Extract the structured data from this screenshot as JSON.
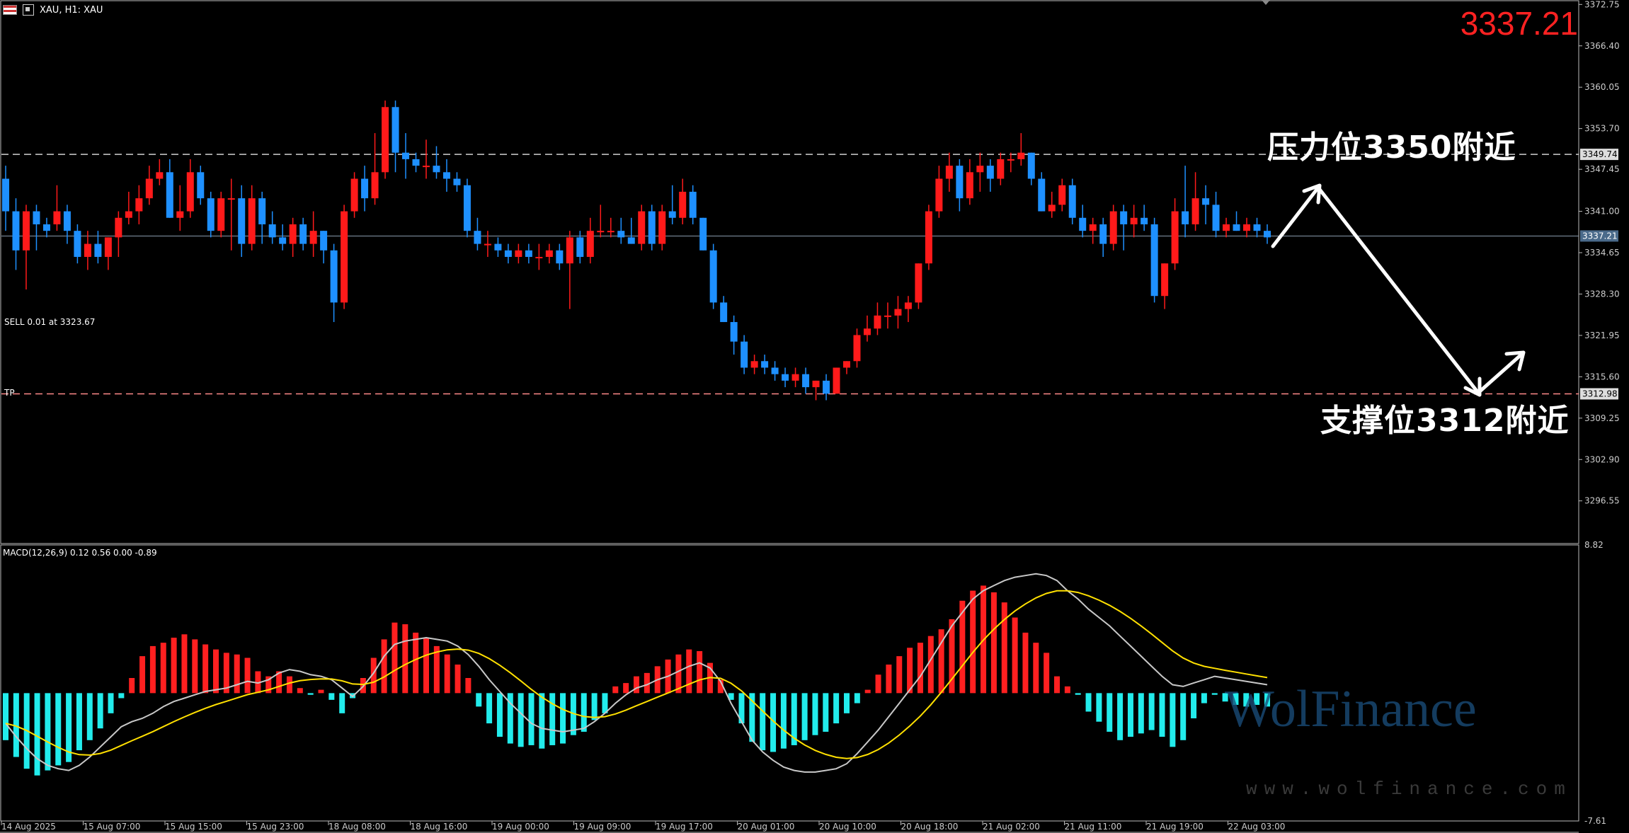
{
  "header": {
    "symbol_text": "XAU, H1:  XAU",
    "current_price": "3337.21",
    "trade_label": "SELL 0.01 at 3323.67",
    "tp_label": "TP",
    "macd_label": "MACD(12,26,9) 0.12 0.56 0.00 -0.89"
  },
  "annotations": {
    "resistance": "压力位3350附近",
    "support": "支撑位3312附近"
  },
  "watermark": {
    "brand": "WolFinance",
    "url": "www.wolfinance.com"
  },
  "colors": {
    "bull": "#ff1a1a",
    "bear": "#1e90ff",
    "macd_pos": "#ff2020",
    "macd_neg": "#22ecec",
    "macd_line": "#c8c8c8",
    "signal_line": "#ffe000",
    "grid": "#bbbbbb"
  },
  "chart_data": [
    {
      "type": "candlestick",
      "price_axis": [
        "3372.75",
        "3366.40",
        "3360.05",
        "3353.70",
        "3347.45",
        "3341.00",
        "3334.65",
        "3328.30",
        "3321.95",
        "3315.60",
        "3309.25",
        "3302.90",
        "3296.55"
      ],
      "ylim": [
        3290,
        3373
      ],
      "levels": {
        "resistance_line": "3349.74",
        "current_line": "3337.21",
        "tp_line": "3312.98"
      },
      "time_labels": [
        "14 Aug 2025",
        "15 Aug 07:00",
        "15 Aug 15:00",
        "15 Aug 23:00",
        "18 Aug 08:00",
        "18 Aug 16:00",
        "19 Aug 00:00",
        "19 Aug 09:00",
        "19 Aug 17:00",
        "20 Aug 01:00",
        "20 Aug 10:00",
        "20 Aug 18:00",
        "21 Aug 02:00",
        "21 Aug 11:00",
        "21 Aug 19:00",
        "22 Aug 03:00"
      ],
      "candles": [
        [
          3346,
          3348,
          3338,
          3341
        ],
        [
          3341,
          3343,
          3332,
          3335
        ],
        [
          3335,
          3342,
          3329,
          3341
        ],
        [
          3341,
          3342,
          3335,
          3339
        ],
        [
          3339,
          3340,
          3337,
          3338
        ],
        [
          3339,
          3345,
          3338,
          3341
        ],
        [
          3341,
          3342,
          3336,
          3338
        ],
        [
          3338,
          3339,
          3333,
          3334
        ],
        [
          3334,
          3338,
          3332,
          3336
        ],
        [
          3336,
          3338,
          3333,
          3334
        ],
        [
          3334,
          3337,
          3332,
          3337
        ],
        [
          3337,
          3341,
          3334,
          3340
        ],
        [
          3340,
          3344,
          3339,
          3341
        ],
        [
          3341,
          3345,
          3339,
          3343
        ],
        [
          3343,
          3348,
          3342,
          3346
        ],
        [
          3346,
          3349,
          3345,
          3347
        ],
        [
          3347,
          3349,
          3340,
          3340
        ],
        [
          3340,
          3345,
          3338,
          3341
        ],
        [
          3341,
          3349,
          3340,
          3347
        ],
        [
          3347,
          3348,
          3342,
          3343
        ],
        [
          3343,
          3344,
          3337,
          3338
        ],
        [
          3338,
          3344,
          3337,
          3343
        ],
        [
          3343,
          3346,
          3335,
          3343
        ],
        [
          3343,
          3345,
          3334,
          3336
        ],
        [
          3336,
          3345,
          3335,
          3343
        ],
        [
          3343,
          3344,
          3336,
          3339
        ],
        [
          3339,
          3341,
          3336,
          3337
        ],
        [
          3337,
          3339,
          3335,
          3336
        ],
        [
          3336,
          3340,
          3334,
          3339
        ],
        [
          3339,
          3340,
          3335,
          3336
        ],
        [
          3336,
          3341,
          3334,
          3338
        ],
        [
          3338,
          3338,
          3333,
          3335
        ],
        [
          3335,
          3336,
          3324,
          3327
        ],
        [
          3327,
          3342,
          3326,
          3341
        ],
        [
          3341,
          3347,
          3340,
          3346
        ],
        [
          3346,
          3348,
          3341,
          3343
        ],
        [
          3343,
          3353,
          3342,
          3347
        ],
        [
          3347,
          3358,
          3346,
          3357
        ],
        [
          3357,
          3358,
          3347,
          3350
        ],
        [
          3350,
          3353,
          3346,
          3349
        ],
        [
          3349,
          3350,
          3347,
          3348
        ],
        [
          3348,
          3352,
          3346,
          3348
        ],
        [
          3348,
          3351,
          3346,
          3347
        ],
        [
          3347,
          3349,
          3344,
          3346
        ],
        [
          3346,
          3347,
          3344,
          3345
        ],
        [
          3345,
          3346,
          3337,
          3338
        ],
        [
          3338,
          3340,
          3335,
          3336
        ],
        [
          3336,
          3338,
          3334,
          3336
        ],
        [
          3336,
          3337,
          3334,
          3335
        ],
        [
          3335,
          3336,
          3333,
          3334
        ],
        [
          3334,
          3336,
          3333,
          3335
        ],
        [
          3335,
          3336,
          3333,
          3334
        ],
        [
          3334,
          3336,
          3332,
          3334
        ],
        [
          3334,
          3336,
          3333,
          3335
        ],
        [
          3335,
          3336,
          3332,
          3333
        ],
        [
          3333,
          3338,
          3326,
          3337
        ],
        [
          3337,
          3338,
          3333,
          3334
        ],
        [
          3334,
          3340,
          3333,
          3338
        ],
        [
          3338,
          3342,
          3337,
          3338
        ],
        [
          3338,
          3340,
          3337,
          3338
        ],
        [
          3338,
          3340,
          3336,
          3337
        ],
        [
          3337,
          3340,
          3336,
          3336
        ],
        [
          3336,
          3342,
          3335,
          3341
        ],
        [
          3341,
          3342,
          3335,
          3336
        ],
        [
          3336,
          3342,
          3335,
          3341
        ],
        [
          3341,
          3345,
          3339,
          3340
        ],
        [
          3340,
          3346,
          3339,
          3344
        ],
        [
          3344,
          3345,
          3339,
          3340
        ],
        [
          3340,
          3340,
          3335,
          3335
        ],
        [
          3335,
          3336,
          3326,
          3327
        ],
        [
          3327,
          3328,
          3324,
          3324
        ],
        [
          3324,
          3325,
          3319,
          3321
        ],
        [
          3321,
          3322,
          3316,
          3317
        ],
        [
          3317,
          3319,
          3316,
          3318
        ],
        [
          3318,
          3319,
          3316,
          3317
        ],
        [
          3317,
          3318,
          3315,
          3316
        ],
        [
          3316,
          3317,
          3314,
          3315
        ],
        [
          3315,
          3317,
          3314,
          3316
        ],
        [
          3316,
          3317,
          3313,
          3314
        ],
        [
          3314,
          3315,
          3312,
          3315
        ],
        [
          3315,
          3316,
          3312,
          3313
        ],
        [
          3313,
          3317,
          3313,
          3317
        ],
        [
          3317,
          3318,
          3316,
          3318
        ],
        [
          3318,
          3323,
          3317,
          3322
        ],
        [
          3322,
          3325,
          3321,
          3323
        ],
        [
          3323,
          3327,
          3322,
          3325
        ],
        [
          3325,
          3327,
          3323,
          3325
        ],
        [
          3325,
          3328,
          3323,
          3326
        ],
        [
          3326,
          3328,
          3324,
          3327
        ],
        [
          3327,
          3333,
          3326,
          3333
        ],
        [
          3333,
          3342,
          3332,
          3341
        ],
        [
          3341,
          3348,
          3340,
          3346
        ],
        [
          3346,
          3350,
          3344,
          3348
        ],
        [
          3348,
          3349,
          3341,
          3343
        ],
        [
          3343,
          3349,
          3342,
          3347
        ],
        [
          3347,
          3350,
          3344,
          3348
        ],
        [
          3348,
          3349,
          3344,
          3346
        ],
        [
          3346,
          3350,
          3345,
          3349
        ],
        [
          3349,
          3350,
          3347,
          3349
        ],
        [
          3349,
          3353,
          3348,
          3350
        ],
        [
          3350,
          3350,
          3345,
          3346
        ],
        [
          3346,
          3347,
          3341,
          3341
        ],
        [
          3341,
          3344,
          3340,
          3342
        ],
        [
          3342,
          3346,
          3341,
          3345
        ],
        [
          3345,
          3346,
          3339,
          3340
        ],
        [
          3340,
          3342,
          3337,
          3338
        ],
        [
          3338,
          3340,
          3336,
          3339
        ],
        [
          3339,
          3340,
          3334,
          3336
        ],
        [
          3336,
          3342,
          3335,
          3341
        ],
        [
          3341,
          3342,
          3335,
          3339
        ],
        [
          3339,
          3342,
          3337,
          3340
        ],
        [
          3340,
          3342,
          3338,
          3339
        ],
        [
          3339,
          3340,
          3327,
          3328
        ],
        [
          3328,
          3333,
          3326,
          3333
        ],
        [
          3333,
          3343,
          3332,
          3341
        ],
        [
          3341,
          3348,
          3337,
          3339
        ],
        [
          3339,
          3347,
          3338,
          3343
        ],
        [
          3343,
          3345,
          3339,
          3342
        ],
        [
          3342,
          3344,
          3337,
          3338
        ],
        [
          3338,
          3340,
          3337,
          3339
        ],
        [
          3339,
          3341,
          3338,
          3338
        ],
        [
          3338,
          3340,
          3337,
          3339
        ],
        [
          3339,
          3340,
          3337,
          3338
        ],
        [
          3338,
          3339,
          3336,
          3337
        ]
      ]
    },
    {
      "type": "bar",
      "name": "MACD",
      "axis": [
        "8.82",
        "-7.61"
      ],
      "ylim": [
        -7.61,
        8.82
      ],
      "histogram": [
        -2.8,
        -3.8,
        -4.5,
        -4.9,
        -4.6,
        -4.3,
        -4.1,
        -3.4,
        -2.8,
        -2.1,
        -1.2,
        -0.3,
        0.9,
        2.2,
        2.8,
        3.0,
        3.3,
        3.5,
        3.2,
        2.9,
        2.6,
        2.4,
        2.3,
        2.1,
        1.3,
        1.0,
        1.3,
        1.0,
        0.3,
        -0.1,
        0.2,
        -0.4,
        -1.2,
        -0.3,
        0.9,
        2.1,
        3.2,
        4.2,
        4.1,
        3.6,
        3.3,
        2.8,
        2.3,
        1.7,
        0.9,
        -0.8,
        -1.8,
        -2.6,
        -3.0,
        -3.2,
        -3.1,
        -3.3,
        -3.1,
        -3.0,
        -2.5,
        -2.3,
        -1.6,
        -1.2,
        0.4,
        0.6,
        1.0,
        1.2,
        1.6,
        2.0,
        2.3,
        2.6,
        2.5,
        1.8,
        0.8,
        -0.4,
        -1.8,
        -2.9,
        -3.4,
        -3.5,
        -3.3,
        -3.1,
        -2.8,
        -2.5,
        -2.3,
        -1.8,
        -1.2,
        -0.6,
        0.2,
        1.1,
        1.7,
        2.2,
        2.7,
        3.0,
        3.4,
        3.8,
        4.4,
        5.5,
        6.1,
        6.4,
        6.0,
        5.4,
        4.5,
        3.6,
        3.0,
        2.4,
        1.0,
        0.4,
        -0.1,
        -1.1,
        -1.7,
        -2.3,
        -2.8,
        -2.6,
        -2.4,
        -2.2,
        -2.6,
        -3.2,
        -2.8,
        -1.5,
        -0.6,
        -0.1,
        -0.5,
        -0.7,
        -0.8,
        -0.7,
        -0.8
      ],
      "macd_line": [
        -1.8,
        -2.6,
        -3.3,
        -3.9,
        -4.3,
        -4.5,
        -4.6,
        -4.3,
        -3.8,
        -3.2,
        -2.6,
        -2.0,
        -1.7,
        -1.5,
        -1.2,
        -0.8,
        -0.5,
        -0.3,
        -0.1,
        0.1,
        0.2,
        0.3,
        0.5,
        0.7,
        0.6,
        0.8,
        1.2,
        1.4,
        1.3,
        1.1,
        1.0,
        0.8,
        0.3,
        -0.2,
        0.4,
        1.2,
        2.2,
        2.9,
        3.1,
        3.2,
        3.3,
        3.2,
        3.1,
        2.8,
        2.3,
        1.6,
        0.8,
        0.1,
        -0.6,
        -1.2,
        -1.8,
        -2.1,
        -2.2,
        -2.3,
        -2.2,
        -2.1,
        -1.7,
        -1.2,
        -0.6,
        -0.1,
        0.3,
        0.5,
        0.8,
        1.0,
        1.3,
        1.6,
        1.8,
        1.5,
        0.7,
        -0.6,
        -1.7,
        -2.8,
        -3.5,
        -4.0,
        -4.4,
        -4.6,
        -4.7,
        -4.7,
        -4.6,
        -4.5,
        -4.2,
        -3.6,
        -2.9,
        -2.2,
        -1.4,
        -0.6,
        0.2,
        1.0,
        2.0,
        3.0,
        4.0,
        4.8,
        5.6,
        6.1,
        6.4,
        6.7,
        6.9,
        7.0,
        7.1,
        7.0,
        6.7,
        6.1,
        5.6,
        5.0,
        4.5,
        4.0,
        3.4,
        2.8,
        2.2,
        1.6,
        1.0,
        0.5,
        0.4,
        0.6,
        0.8,
        1.0,
        0.9,
        0.8,
        0.7,
        0.6,
        0.5
      ]
    }
  ]
}
